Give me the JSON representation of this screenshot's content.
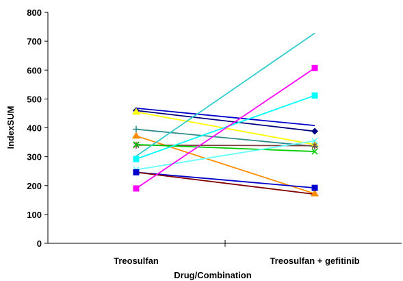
{
  "chart_data": {
    "type": "line",
    "title": "",
    "xlabel": "Drug/Combination",
    "ylabel": "IndexSUM",
    "categories": [
      "Treosulfan",
      "Treosulfan + gefitinib"
    ],
    "ylim": [
      0,
      800
    ],
    "yticks": [
      0,
      100,
      200,
      300,
      400,
      500,
      600,
      700,
      800
    ],
    "grid": false,
    "legend": "none",
    "series": [
      {
        "values": [
          468,
          408
        ],
        "color": "#0000cc",
        "marker": "none"
      },
      {
        "values": [
          460,
          388
        ],
        "color": "#000080",
        "marker": "diamond"
      },
      {
        "values": [
          455,
          342
        ],
        "color": "#ffff00",
        "marker": "triangle"
      },
      {
        "values": [
          395,
          336
        ],
        "color": "#2e8b8b",
        "marker": "plus"
      },
      {
        "values": [
          372,
          172
        ],
        "color": "#ff8c00",
        "marker": "triangle"
      },
      {
        "values": [
          340,
          338
        ],
        "color": "#7f3f3f",
        "marker": "star"
      },
      {
        "values": [
          342,
          318
        ],
        "color": "#00cc00",
        "marker": "x"
      },
      {
        "values": [
          302,
          728
        ],
        "color": "#33cccc",
        "marker": "none"
      },
      {
        "values": [
          292,
          512
        ],
        "color": "#00ffff",
        "marker": "square"
      },
      {
        "values": [
          255,
          355
        ],
        "color": "#66ffff",
        "marker": "x"
      },
      {
        "values": [
          246,
          192
        ],
        "color": "#0000cc",
        "marker": "square"
      },
      {
        "values": [
          246,
          170
        ],
        "color": "#800000",
        "marker": "none"
      },
      {
        "values": [
          190,
          607
        ],
        "color": "#ff00ff",
        "marker": "square"
      }
    ]
  }
}
